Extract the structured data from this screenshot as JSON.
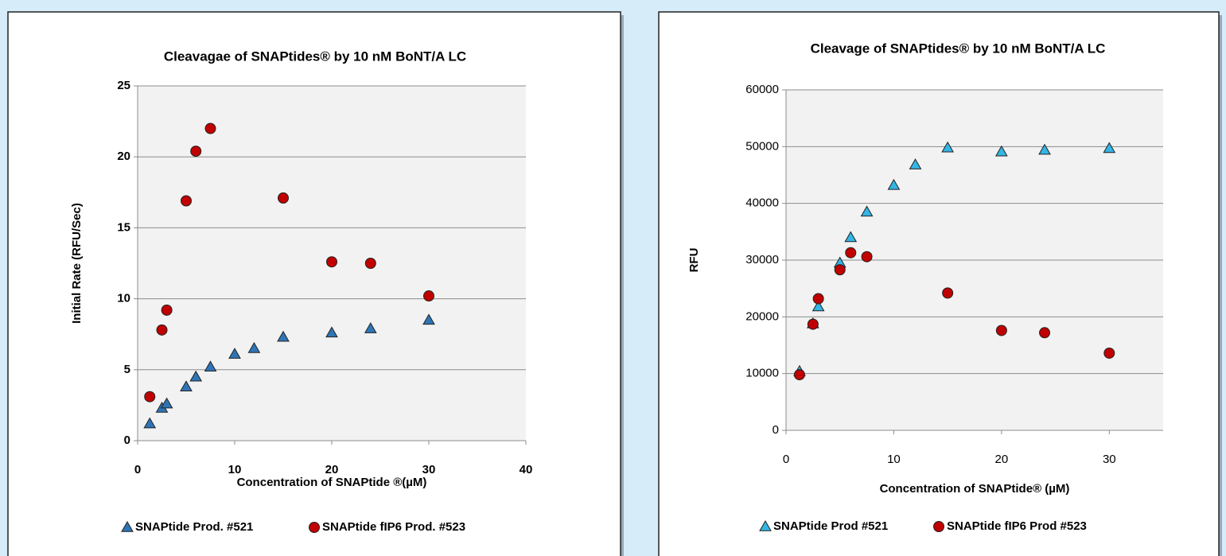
{
  "chart_data": [
    {
      "type": "scatter",
      "title": "Cleavagae of SNAPtides® by 10 nM BoNT/A LC",
      "x_label": "Concentration of SNAPtide ®(µM)",
      "y_label": "Initial Rate (RFU/Sec)",
      "xlim": [
        0,
        40
      ],
      "xticks": [
        0,
        10,
        20,
        30,
        40
      ],
      "ylim": [
        0,
        25
      ],
      "yticks": [
        0,
        5,
        10,
        15,
        20,
        25
      ],
      "grid": true,
      "series": [
        {
          "name": "SNAPtide Prod. #521",
          "color": "#2e75b6",
          "marker": "triangle",
          "x": [
            1.25,
            2.5,
            3,
            5,
            6,
            7.5,
            10,
            12,
            15,
            20,
            24,
            30
          ],
          "values": [
            1.2,
            2.3,
            2.6,
            3.8,
            4.5,
            5.2,
            6.1,
            6.5,
            7.3,
            7.6,
            7.9,
            8.5
          ]
        },
        {
          "name": "SNAPtide fIP6 Prod. #523",
          "color": "#c00000",
          "marker": "circle",
          "x": [
            1.25,
            2.5,
            3,
            5,
            6,
            7.5,
            15,
            20,
            24,
            30
          ],
          "values": [
            3.1,
            7.8,
            9.2,
            16.9,
            20.4,
            22,
            17.1,
            12.6,
            12.5,
            10.2
          ]
        }
      ]
    },
    {
      "type": "scatter",
      "title": "Cleavage of SNAPtides® by 10 nM BoNT/A LC",
      "x_label": "Concentration of SNAPtide® (µM)",
      "y_label": "RFU",
      "xlim": [
        0,
        35
      ],
      "xticks": [
        0,
        10,
        20,
        30
      ],
      "ylim": [
        0,
        60000
      ],
      "yticks": [
        0,
        10000,
        20000,
        30000,
        40000,
        50000,
        60000
      ],
      "grid": true,
      "series": [
        {
          "name": "SNAPtide Prod #521",
          "color": "#33b5e5",
          "marker": "triangle",
          "x": [
            1.25,
            2.5,
            3,
            5,
            6,
            7.5,
            10,
            12,
            15,
            20,
            24,
            30
          ],
          "values": [
            10400,
            18800,
            21800,
            29500,
            34000,
            38500,
            43200,
            46800,
            49800,
            49100,
            49400,
            49700
          ]
        },
        {
          "name": "SNAPtide fIP6 Prod #523",
          "color": "#c00000",
          "marker": "circle",
          "x": [
            1.25,
            2.5,
            3,
            5,
            6,
            7.5,
            15,
            20,
            24,
            30
          ],
          "values": [
            9800,
            18700,
            23200,
            28300,
            31300,
            30600,
            24200,
            17600,
            17200,
            13600
          ]
        }
      ]
    }
  ]
}
